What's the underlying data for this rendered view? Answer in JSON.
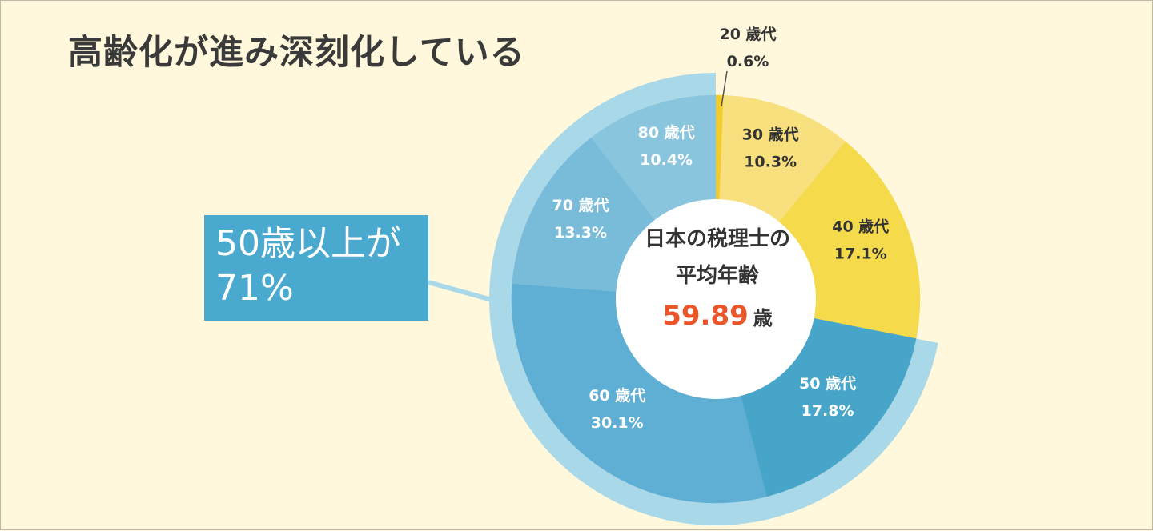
{
  "title": "高齢化が進み深刻化している",
  "callout": {
    "line1": "50歳以上が",
    "line2": "71%"
  },
  "center": {
    "line1": "日本の税理士の",
    "line2": "平均年齢",
    "value": "59.89",
    "unit": "歳"
  },
  "chart_data": {
    "type": "pie",
    "categories": [
      "20 歳代",
      "30 歳代",
      "40 歳代",
      "50 歳代",
      "60 歳代",
      "70 歳代",
      "80 歳代"
    ],
    "values": [
      0.6,
      10.3,
      17.1,
      17.8,
      30.1,
      13.3,
      10.4
    ],
    "value_labels": [
      "0.6%",
      "10.3%",
      "17.1%",
      "17.8%",
      "30.1%",
      "13.3%",
      "10.4%"
    ],
    "colors": [
      "#f2cb2c",
      "#f8e07f",
      "#f5da4c",
      "#47a5c9",
      "#5eafd3",
      "#79bcda",
      "#8ac5de"
    ],
    "label_colors": [
      "#333333",
      "#333333",
      "#333333",
      "#ffffff",
      "#ffffff",
      "#ffffff",
      "#ffffff"
    ],
    "highlight": {
      "from_category": "50 歳代",
      "total_label": "71%",
      "color": "#a9d8e8"
    }
  }
}
